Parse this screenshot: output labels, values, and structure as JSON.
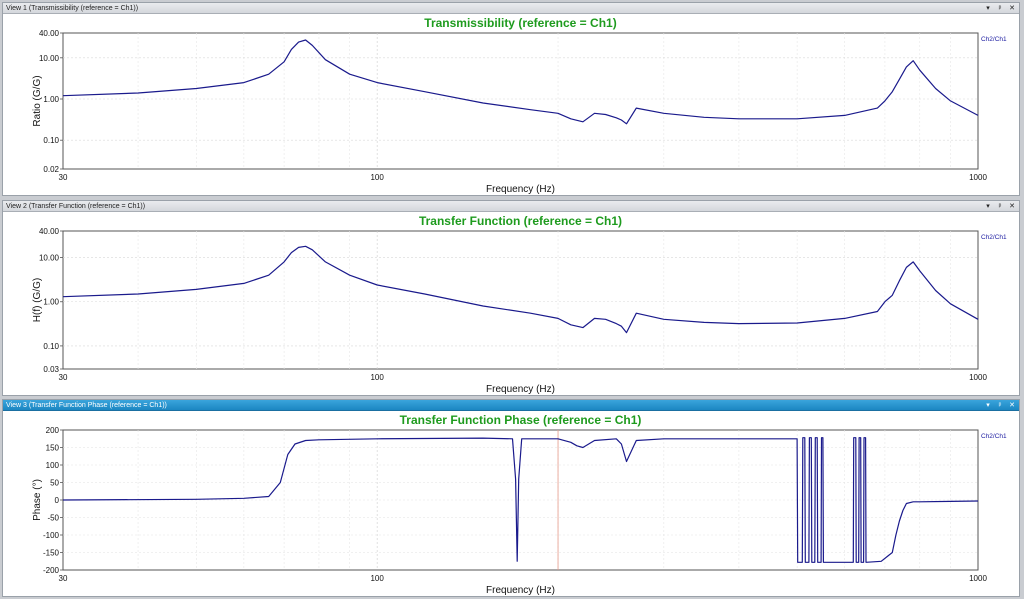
{
  "views": [
    {
      "window_title": "View 1 (Transmissibility (reference = Ch1))",
      "active": false,
      "window_buttons": [
        "▾",
        "ᵖ",
        "✕"
      ],
      "chart_data": {
        "type": "line",
        "title": "Transmissibility (reference = Ch1)",
        "xlabel": "Frequency (Hz)",
        "ylabel": "Ratio (G/G)",
        "xscale": "log",
        "yscale": "log",
        "xlim": [
          30,
          1000
        ],
        "ylim": [
          0.02,
          40
        ],
        "xticks": [
          30,
          100,
          1000
        ],
        "xtick_labels": [
          "30",
          "100",
          "1000"
        ],
        "yticks": [
          40,
          10,
          1,
          0.1,
          0.02
        ],
        "ytick_labels": [
          "40.00",
          "10.00",
          "1.00",
          "0.10",
          "0.02"
        ],
        "grid": true,
        "legend_position": "right",
        "line_color": "#1a1a8c",
        "series": [
          {
            "name": "Ch2/Ch1",
            "x": [
              30,
              40,
              50,
              60,
              66,
              70,
              72,
              74,
              76,
              78,
              82,
              90,
              100,
              120,
              150,
              180,
              200,
              210,
              220,
              230,
              240,
              250,
              255,
              260,
              270,
              300,
              350,
              400,
              500,
              600,
              680,
              700,
              720,
              740,
              760,
              780,
              800,
              850,
              900,
              1000
            ],
            "y": [
              1.2,
              1.4,
              1.8,
              2.5,
              4,
              8,
              16,
              24,
              27,
              20,
              9,
              4,
              2.5,
              1.5,
              0.8,
              0.55,
              0.45,
              0.33,
              0.28,
              0.45,
              0.42,
              0.35,
              0.31,
              0.25,
              0.6,
              0.45,
              0.36,
              0.33,
              0.33,
              0.4,
              0.6,
              0.9,
              1.5,
              3,
              6,
              8.5,
              5,
              1.8,
              0.9,
              0.4
            ]
          }
        ]
      }
    },
    {
      "window_title": "View 2 (Transfer Function (reference = Ch1))",
      "active": false,
      "window_buttons": [
        "▾",
        "ᵖ",
        "✕"
      ],
      "chart_data": {
        "type": "line",
        "title": "Transfer Function (reference = Ch1)",
        "xlabel": "Frequency (Hz)",
        "ylabel": "H(f) (G/G)",
        "xscale": "log",
        "yscale": "log",
        "xlim": [
          30,
          1000
        ],
        "ylim": [
          0.03,
          40
        ],
        "xticks": [
          30,
          100,
          1000
        ],
        "xtick_labels": [
          "30",
          "100",
          "1000"
        ],
        "yticks": [
          40,
          10,
          1,
          0.1,
          0.03
        ],
        "ytick_labels": [
          "40.00",
          "10.00",
          "1.00",
          "0.10",
          "0.03"
        ],
        "grid": true,
        "legend_position": "right",
        "line_color": "#1a1a8c",
        "series": [
          {
            "name": "Ch2/Ch1",
            "x": [
              30,
              40,
              50,
              60,
              66,
              70,
              72,
              74,
              76,
              78,
              82,
              90,
              100,
              120,
              150,
              180,
              200,
              210,
              220,
              230,
              240,
              250,
              255,
              260,
              270,
              300,
              350,
              400,
              500,
              600,
              680,
              700,
              720,
              740,
              760,
              780,
              800,
              850,
              900,
              1000
            ],
            "y": [
              1.3,
              1.5,
              1.9,
              2.6,
              4,
              8,
              13,
              17,
              18,
              15,
              8,
              4,
              2.4,
              1.5,
              0.8,
              0.55,
              0.42,
              0.3,
              0.26,
              0.42,
              0.4,
              0.32,
              0.28,
              0.2,
              0.55,
              0.4,
              0.34,
              0.32,
              0.33,
              0.42,
              0.6,
              1.0,
              1.4,
              3,
              6,
              8,
              5,
              1.8,
              0.9,
              0.4
            ]
          }
        ]
      }
    },
    {
      "window_title": "View 3 (Transfer Function Phase (reference = Ch1))",
      "active": true,
      "window_buttons": [
        "▾",
        "ᵖ",
        "✕"
      ],
      "chart_data": {
        "type": "line",
        "title": "Transfer Function Phase (reference = Ch1)",
        "xlabel": "Frequency (Hz)",
        "ylabel": "Phase (°)",
        "xscale": "log",
        "yscale": "linear",
        "xlim": [
          30,
          1000
        ],
        "ylim": [
          -200,
          200
        ],
        "xticks": [
          30,
          100,
          1000
        ],
        "xtick_labels": [
          "30",
          "100",
          "1000"
        ],
        "yticks": [
          200,
          150,
          100,
          50,
          0,
          -50,
          -100,
          -150,
          -200
        ],
        "ytick_labels": [
          "200",
          "150",
          "100",
          "50",
          "0",
          "-50",
          "-100",
          "-150",
          "-200"
        ],
        "grid": true,
        "legend_position": "right",
        "line_color": "#1a1a8c",
        "cursor_x": 200,
        "cursor_color": "#e59a8a",
        "series": [
          {
            "name": "Ch2/Ch1",
            "x": [
              30,
              50,
              60,
              66,
              69,
              71,
              73,
              76,
              80,
              100,
              150,
              168,
              170,
              171,
              172,
              174,
              200,
              210,
              215,
              220,
              230,
              250,
              255,
              260,
              270,
              300,
              400,
              500,
              501,
              510,
              511,
              515,
              516,
              523,
              524,
              528,
              529,
              535,
              536,
              540,
              541,
              548,
              549,
              552,
              553,
              560,
              561,
              620,
              621,
              626,
              627,
              633,
              634,
              638,
              639,
              645,
              646,
              650,
              651,
              690,
              720,
              730,
              740,
              750,
              760,
              780,
              800,
              900,
              1000
            ],
            "y": [
              0,
              2,
              5,
              10,
              50,
              130,
              160,
              170,
              172,
              175,
              177,
              175,
              60,
              -175,
              60,
              175,
              175,
              165,
              155,
              150,
              170,
              175,
              160,
              110,
              170,
              175,
              175,
              175,
              -178,
              -178,
              178,
              178,
              -178,
              -178,
              178,
              178,
              -178,
              -178,
              178,
              178,
              -178,
              -178,
              178,
              178,
              -178,
              -178,
              -178,
              -178,
              178,
              178,
              -178,
              -178,
              178,
              178,
              -178,
              -178,
              178,
              178,
              -178,
              -175,
              -150,
              -100,
              -60,
              -30,
              -10,
              -5,
              -5,
              -4,
              -3
            ]
          }
        ]
      }
    }
  ]
}
